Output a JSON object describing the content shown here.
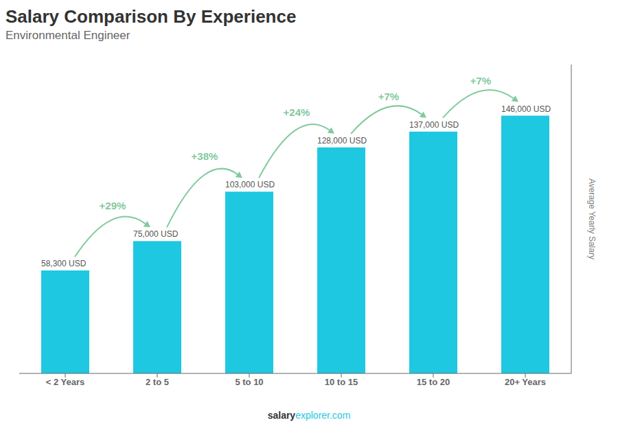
{
  "chart_data": {
    "type": "bar",
    "title": "Salary Comparison By Experience",
    "subtitle": "Environmental Engineer",
    "categories": [
      "< 2 Years",
      "2 to 5",
      "5 to 10",
      "10 to 15",
      "15 to 20",
      "20+ Years"
    ],
    "values": [
      58300,
      75000,
      103000,
      128000,
      137000,
      146000
    ],
    "value_labels": [
      "58,300 USD",
      "75,000 USD",
      "103,000 USD",
      "128,000 USD",
      "137,000 USD",
      "146,000 USD"
    ],
    "data_labels": true,
    "annotations": [
      "+29%",
      "+38%",
      "+24%",
      "+7%",
      "+7%"
    ],
    "ylabel": "Average Yearly Salary",
    "footer": [
      "salary",
      "explorer.com"
    ],
    "color": "#1ec8e0",
    "ylim": [
      0,
      175000
    ],
    "tick_labels": "x",
    "grid": false
  }
}
